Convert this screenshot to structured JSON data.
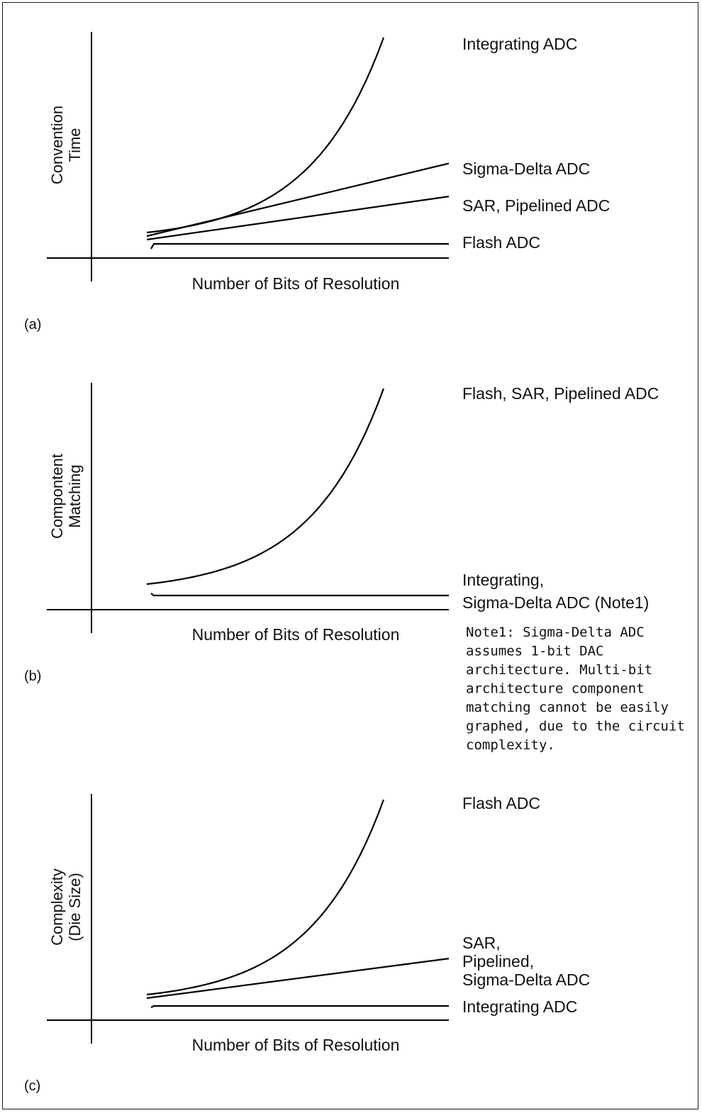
{
  "chart_data": [
    {
      "type": "line",
      "panel_label": "(a)",
      "xlabel": "Number of Bits of Resolution",
      "ylabel": [
        "Convention",
        "Time"
      ],
      "series": [
        {
          "name": "Integrating ADC",
          "label_lines": [
            "Integrating ADC"
          ],
          "trend": "exponential",
          "end_level": 1.0
        },
        {
          "name": "Sigma-Delta ADC",
          "label_lines": [
            "Sigma-Delta ADC"
          ],
          "trend": "linear",
          "end_level": 0.39
        },
        {
          "name": "SAR, Pipelined ADC",
          "label_lines": [
            "SAR, Pipelined ADC"
          ],
          "trend": "linear",
          "end_level": 0.23
        },
        {
          "name": "Flash ADC",
          "label_lines": [
            "Flash ADC"
          ],
          "trend": "flat",
          "end_level": 0.07
        }
      ]
    },
    {
      "type": "line",
      "panel_label": "(b)",
      "xlabel": "Number of Bits of Resolution",
      "ylabel": [
        "Compontent",
        "Matching"
      ],
      "series": [
        {
          "name": "Flash, SAR, Pipelined ADC",
          "label_lines": [
            "Flash, SAR, Pipelined ADC"
          ],
          "trend": "exponential",
          "end_level": 1.0
        },
        {
          "name": "Integrating, Sigma-Delta ADC (Note1)",
          "label_lines": [
            "Integrating,",
            "Sigma-Delta ADC (Note1)"
          ],
          "trend": "flat",
          "end_level": 0.07
        }
      ],
      "note_lines": [
        "Note1: Sigma-Delta ADC",
        "assumes 1-bit DAC",
        "architecture. Multi-bit",
        "architecture component",
        "matching cannot be easily",
        "graphed, due to the circuit",
        "complexity."
      ]
    },
    {
      "type": "line",
      "panel_label": "(c)",
      "xlabel": "Number of Bits of Resolution",
      "ylabel": [
        "Complexity",
        "(Die Size)"
      ],
      "series": [
        {
          "name": "Flash ADC",
          "label_lines": [
            "Flash ADC"
          ],
          "trend": "exponential",
          "end_level": 1.0
        },
        {
          "name": "SAR, Pipelined, Sigma-Delta ADC",
          "label_lines": [
            "SAR,",
            "Pipelined,",
            "Sigma-Delta ADC"
          ],
          "trend": "linear",
          "end_level": 0.23
        },
        {
          "name": "Integrating ADC",
          "label_lines": [
            "Integrating ADC"
          ],
          "trend": "flat",
          "end_level": 0.07
        }
      ]
    }
  ]
}
